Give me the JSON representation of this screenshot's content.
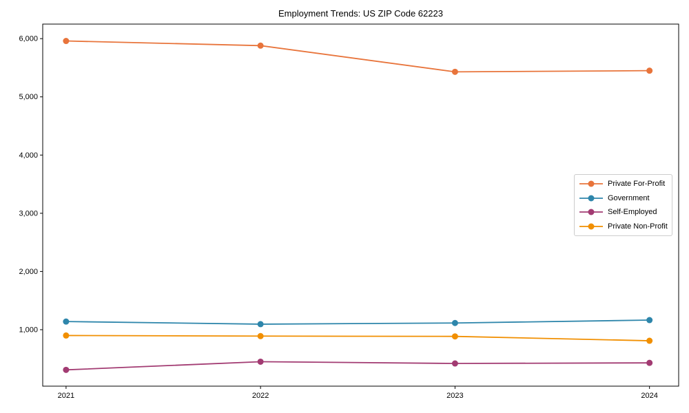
{
  "chart_data": {
    "type": "line",
    "title": "Employment Trends: US ZIP Code 62223",
    "categories": [
      "2021",
      "2022",
      "2023",
      "2024"
    ],
    "x": [
      2021,
      2022,
      2023,
      2024
    ],
    "series": [
      {
        "name": "Private For-Profit",
        "color": "#E8743B",
        "values": [
          5960,
          5880,
          5430,
          5450
        ]
      },
      {
        "name": "Government",
        "color": "#2E86AB",
        "values": [
          1140,
          1095,
          1115,
          1165
        ]
      },
      {
        "name": "Self-Employed",
        "color": "#A23B72",
        "values": [
          310,
          450,
          420,
          430
        ]
      },
      {
        "name": "Private Non-Profit",
        "color": "#F18F01",
        "values": [
          900,
          890,
          885,
          810
        ]
      }
    ],
    "yticks": [
      1000,
      2000,
      3000,
      4000,
      5000,
      6000
    ],
    "ylim": [
      30,
      6250
    ],
    "xlim": [
      2020.88,
      2024.15
    ],
    "xlabel": "",
    "ylabel": "",
    "grid": false,
    "legend_position": "right-middle",
    "axis_color": "#000000",
    "background_color": "#ffffff"
  }
}
